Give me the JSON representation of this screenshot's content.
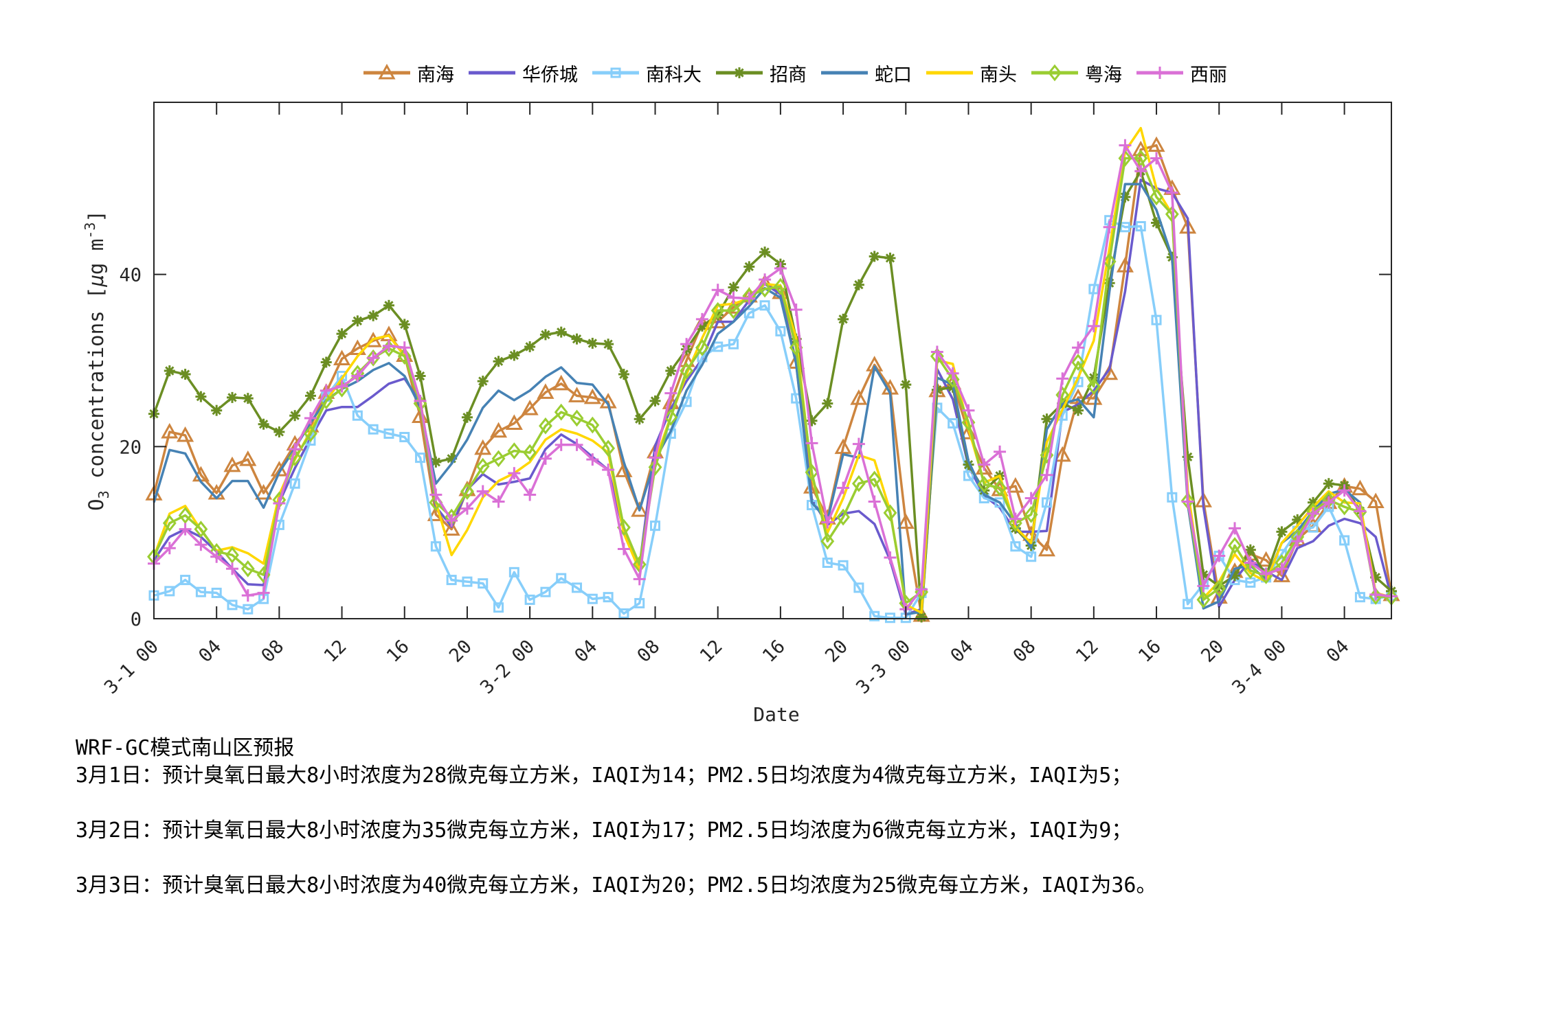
{
  "chart_data": {
    "type": "line",
    "title": "",
    "xlabel": "Date",
    "ylabel": "O3 concentrations [μg m^-3]",
    "ylabel_parts": {
      "main": "O",
      "sub": "3",
      "rest": " concentrations [",
      "mu": "μ",
      "unit": "g m",
      "sup": "-3",
      "close": "]"
    },
    "ylim": [
      0,
      60
    ],
    "yticks": [
      0,
      20,
      40
    ],
    "xlim_hours": [
      0,
      79
    ],
    "xticks": [
      {
        "hour": 0,
        "label": "3-1 00"
      },
      {
        "hour": 4,
        "label": "04"
      },
      {
        "hour": 8,
        "label": "08"
      },
      {
        "hour": 12,
        "label": "12"
      },
      {
        "hour": 16,
        "label": "16"
      },
      {
        "hour": 20,
        "label": "20"
      },
      {
        "hour": 24,
        "label": "3-2 00"
      },
      {
        "hour": 28,
        "label": "04"
      },
      {
        "hour": 32,
        "label": "08"
      },
      {
        "hour": 36,
        "label": "12"
      },
      {
        "hour": 40,
        "label": "16"
      },
      {
        "hour": 44,
        "label": "20"
      },
      {
        "hour": 48,
        "label": "3-3 00"
      },
      {
        "hour": 52,
        "label": "04"
      },
      {
        "hour": 56,
        "label": "08"
      },
      {
        "hour": 60,
        "label": "12"
      },
      {
        "hour": 64,
        "label": "16"
      },
      {
        "hour": 68,
        "label": "20"
      },
      {
        "hour": 72,
        "label": "3-4 00"
      },
      {
        "hour": 76,
        "label": "04"
      }
    ],
    "grid": false,
    "legend_position": "top-outside",
    "x_start": "3-1 00",
    "x_step_hours": 1,
    "series": [
      {
        "name": "南海",
        "color": "#CD853F",
        "marker": "triangle",
        "values": [
          14.5,
          21.7,
          21.3,
          16.7,
          14.6,
          17.8,
          18.5,
          14.6,
          17.3,
          20.3,
          22.4,
          26.3,
          30.2,
          31.4,
          32.3,
          33.0,
          30.6,
          23.5,
          12.1,
          10.4,
          15.0,
          19.8,
          21.8,
          22.7,
          24.4,
          26.3,
          27.3,
          25.9,
          25.7,
          25.2,
          17.2,
          12.6,
          19.4,
          25.1,
          30.0,
          34.3,
          34.5,
          36.2,
          37.5,
          39.0,
          37.9,
          29.8,
          15.3,
          11.7,
          19.9,
          25.6,
          29.5,
          26.8,
          11.2,
          0.4,
          26.5,
          27.4,
          21.6,
          17.5,
          15.0,
          15.4,
          9.8,
          8.0,
          19.0,
          25.7,
          25.6,
          28.5,
          41.0,
          54.5,
          55.0,
          50.0,
          45.5,
          13.7,
          2.5,
          5.5,
          7.5,
          6.8,
          5.0,
          9.2,
          10.8,
          13.5,
          15.4,
          15.1,
          13.6,
          2.8
        ]
      },
      {
        "name": "华侨城",
        "color": "#6A5ACD",
        "marker": "none",
        "values": [
          6.8,
          9.5,
          10.4,
          9.5,
          7.8,
          5.8,
          4.0,
          3.9,
          13.5,
          17.5,
          21.0,
          24.2,
          24.6,
          24.6,
          25.9,
          27.3,
          27.9,
          25.1,
          13.0,
          10.7,
          15.0,
          16.8,
          15.6,
          15.9,
          16.3,
          19.7,
          21.4,
          20.3,
          18.8,
          17.3,
          10.2,
          6.1,
          20.1,
          24.4,
          27.6,
          30.2,
          34.5,
          34.5,
          37.0,
          38.9,
          37.7,
          29.7,
          13.9,
          10.9,
          12.2,
          12.5,
          11.0,
          6.8,
          0.5,
          1.1,
          29.0,
          25.5,
          17.7,
          14.3,
          12.9,
          10.1,
          10.1,
          10.2,
          24.0,
          24.9,
          26.5,
          29.0,
          38.0,
          51.0,
          50.0,
          49.5,
          46.5,
          13.0,
          1.4,
          4.5,
          6.8,
          5.5,
          4.5,
          8.2,
          9.0,
          10.8,
          11.6,
          11.1,
          9.5,
          2.5
        ]
      },
      {
        "name": "南科大",
        "color": "#87CEFA",
        "marker": "square",
        "values": [
          2.7,
          3.2,
          4.5,
          3.1,
          3.0,
          1.6,
          1.1,
          2.3,
          10.9,
          15.7,
          20.7,
          25.8,
          28.2,
          23.6,
          22.0,
          21.5,
          21.1,
          18.7,
          8.4,
          4.5,
          4.3,
          4.1,
          1.3,
          5.4,
          2.2,
          3.1,
          4.7,
          3.6,
          2.3,
          2.5,
          0.6,
          1.8,
          10.8,
          21.5,
          25.2,
          30.4,
          31.6,
          31.9,
          35.5,
          36.4,
          33.4,
          25.6,
          13.2,
          6.5,
          6.2,
          3.6,
          0.3,
          0.1,
          0.1,
          3.0,
          24.5,
          22.7,
          16.6,
          14.0,
          13.5,
          8.4,
          7.2,
          13.5,
          23.6,
          27.5,
          38.3,
          46.3,
          45.5,
          45.6,
          34.7,
          14.1,
          1.7,
          4.0,
          7.3,
          4.5,
          4.2,
          4.8,
          7.5,
          10.2,
          10.6,
          13.0,
          9.1,
          2.5,
          2.3,
          2.7
        ]
      },
      {
        "name": "招商",
        "color": "#6B8E23",
        "marker": "asterisk",
        "values": [
          23.8,
          28.8,
          28.4,
          25.8,
          24.2,
          25.7,
          25.6,
          22.6,
          21.7,
          23.6,
          25.9,
          29.8,
          33.1,
          34.6,
          35.2,
          36.4,
          34.2,
          28.2,
          18.2,
          18.6,
          23.4,
          27.6,
          29.9,
          30.6,
          31.6,
          33.0,
          33.3,
          32.5,
          32.0,
          31.9,
          28.4,
          23.2,
          25.3,
          28.8,
          31.3,
          34.0,
          35.3,
          38.5,
          40.9,
          42.6,
          41.2,
          32.5,
          23.0,
          25.0,
          34.8,
          38.8,
          42.1,
          41.9,
          27.2,
          0.2,
          26.6,
          26.9,
          17.9,
          14.9,
          16.6,
          10.5,
          8.5,
          23.2,
          25.0,
          24.2,
          28.0,
          39.0,
          49.0,
          52.0,
          46.0,
          42.0,
          18.8,
          5.1,
          3.8,
          5.0,
          8.0,
          5.0,
          10.1,
          11.5,
          13.5,
          15.7,
          15.5,
          12.5,
          4.8,
          3.2
        ]
      },
      {
        "name": "蛇口",
        "color": "#4682B4",
        "marker": "none",
        "values": [
          13.5,
          19.6,
          19.2,
          15.9,
          14.0,
          16.0,
          16.0,
          12.9,
          17.0,
          19.8,
          22.8,
          25.4,
          26.7,
          27.6,
          28.9,
          29.7,
          28.2,
          24.6,
          15.7,
          18.0,
          20.8,
          24.5,
          26.5,
          25.4,
          26.5,
          28.1,
          29.2,
          27.4,
          27.2,
          24.9,
          18.2,
          12.6,
          18.5,
          21.8,
          26.5,
          29.5,
          33.1,
          34.5,
          36.3,
          38.4,
          37.3,
          29.6,
          13.5,
          11.4,
          19.1,
          18.7,
          29.3,
          26.2,
          0.5,
          0.8,
          28.0,
          27.2,
          18.3,
          14.4,
          13.5,
          11.0,
          8.2,
          22.0,
          25.0,
          25.5,
          23.4,
          38.0,
          50.5,
          50.5,
          47.5,
          42.0,
          13.3,
          1.2,
          2.0,
          5.8,
          6.2,
          4.5,
          8.8,
          10.2,
          12.5,
          14.5,
          15.0,
          13.5,
          2.5,
          2.8
        ]
      },
      {
        "name": "南头",
        "color": "#FFD700",
        "marker": "none",
        "values": [
          7.2,
          12.2,
          13.1,
          10.3,
          7.9,
          8.3,
          7.6,
          6.4,
          14.4,
          18.5,
          21.8,
          25.3,
          27.9,
          30.5,
          32.5,
          32.9,
          30.5,
          25.5,
          13.5,
          7.4,
          10.3,
          14.1,
          16.0,
          16.9,
          18.2,
          20.8,
          22.0,
          21.5,
          20.7,
          19.3,
          9.9,
          5.6,
          18.3,
          23.5,
          28.4,
          32.6,
          36.4,
          36.6,
          37.2,
          38.9,
          38.7,
          32.6,
          16.5,
          10.0,
          14.0,
          19.0,
          18.4,
          12.5,
          1.6,
          0.7,
          30.0,
          29.6,
          22.1,
          15.8,
          16.6,
          10.6,
          8.8,
          20.5,
          24.3,
          28.0,
          32.3,
          43.0,
          54.3,
          57.0,
          50.0,
          47.0,
          15.0,
          2.4,
          4.3,
          7.5,
          5.3,
          4.3,
          8.8,
          10.8,
          13.0,
          14.8,
          13.5,
          13.4,
          3.0,
          2.5
        ]
      },
      {
        "name": "粤海",
        "color": "#9ACD32",
        "marker": "diamond",
        "values": [
          7.2,
          11.1,
          12.0,
          10.4,
          7.8,
          7.4,
          5.8,
          5.1,
          13.8,
          18.7,
          21.5,
          25.3,
          26.7,
          28.5,
          30.3,
          31.4,
          30.5,
          25.0,
          13.5,
          11.8,
          14.8,
          17.7,
          18.6,
          19.5,
          19.3,
          22.4,
          24.0,
          23.3,
          22.5,
          19.8,
          10.6,
          6.3,
          17.6,
          23.4,
          28.8,
          31.5,
          35.8,
          35.8,
          37.5,
          38.3,
          38.6,
          31.5,
          17.0,
          9.0,
          11.8,
          15.7,
          16.2,
          12.3,
          1.8,
          3.1,
          30.5,
          27.8,
          22.8,
          15.6,
          15.2,
          11.1,
          12.1,
          19.0,
          26.0,
          29.8,
          27.0,
          41.5,
          53.5,
          53.5,
          49.0,
          47.0,
          13.7,
          2.2,
          3.5,
          8.5,
          5.6,
          5.0,
          6.5,
          9.5,
          12.5,
          13.8,
          13.0,
          12.4,
          2.6,
          2.5
        ]
      },
      {
        "name": "西丽",
        "color": "#DA70D6",
        "marker": "plus",
        "values": [
          6.4,
          8.2,
          10.4,
          8.6,
          7.2,
          5.8,
          2.7,
          3.0,
          13.4,
          19.7,
          23.3,
          26.5,
          27.0,
          28.2,
          30.3,
          31.7,
          31.5,
          25.3,
          14.4,
          11.4,
          12.8,
          14.8,
          13.6,
          16.9,
          14.4,
          18.6,
          20.2,
          20.2,
          18.5,
          17.3,
          8.1,
          4.6,
          18.7,
          26.2,
          31.9,
          34.8,
          38.2,
          37.3,
          37.2,
          39.4,
          40.7,
          35.9,
          20.4,
          11.2,
          15.2,
          20.3,
          13.6,
          7.1,
          1.1,
          3.4,
          31.0,
          28.5,
          24.2,
          17.9,
          19.4,
          11.6,
          14.0,
          16.7,
          27.9,
          31.5,
          34.0,
          45.5,
          55.0,
          52.0,
          53.5,
          49.5,
          13.6,
          3.8,
          7.3,
          10.5,
          6.5,
          5.2,
          5.8,
          9.0,
          12.2,
          13.5,
          14.9,
          12.5,
          2.8,
          2.6
        ]
      }
    ]
  },
  "legend": {
    "items": [
      {
        "name": "南海",
        "color": "#CD853F",
        "marker": "triangle"
      },
      {
        "name": "华侨城",
        "color": "#6A5ACD",
        "marker": "none"
      },
      {
        "name": "南科大",
        "color": "#87CEFA",
        "marker": "square"
      },
      {
        "name": "招商",
        "color": "#6B8E23",
        "marker": "asterisk"
      },
      {
        "name": "蛇口",
        "color": "#4682B4",
        "marker": "none"
      },
      {
        "name": "南头",
        "color": "#FFD700",
        "marker": "none"
      },
      {
        "name": "粤海",
        "color": "#9ACD32",
        "marker": "diamond"
      },
      {
        "name": "西丽",
        "color": "#DA70D6",
        "marker": "plus"
      }
    ]
  },
  "forecast": {
    "title": "WRF-GC模式南山区预报",
    "lines": [
      "3月1日：预计臭氧日最大8小时浓度为28微克每立方米，IAQI为14；PM2.5日均浓度为4微克每立方米，IAQI为5；",
      "3月2日：预计臭氧日最大8小时浓度为35微克每立方米，IAQI为17；PM2.5日均浓度为6微克每立方米，IAQI为9；",
      "3月3日：预计臭氧日最大8小时浓度为40微克每立方米，IAQI为20；PM2.5日均浓度为25微克每立方米，IAQI为36。"
    ]
  }
}
